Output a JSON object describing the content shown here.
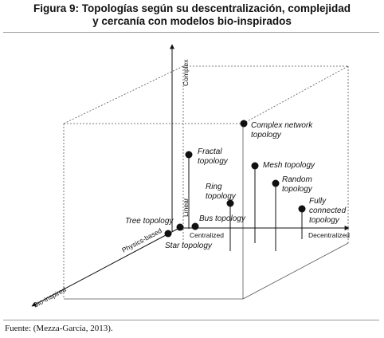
{
  "title": {
    "line1": "Figura 9: Topologías según su descentralización, complejidad",
    "line2": "y cercanía con modelos bio-inspirados"
  },
  "axes": {
    "complex": "Complex",
    "linear": "Linear",
    "centralized": "Centralized",
    "decentralized": "Decentralized",
    "physics_based": "Physics-based",
    "bio_inspired": "Bio-inspired"
  },
  "nodes": {
    "complex_network": {
      "line1": "Complex network",
      "line2": "topology"
    },
    "fractal": {
      "line1": "Fractal",
      "line2": "topology"
    },
    "mesh": {
      "line1": "Mesh topology"
    },
    "random": {
      "line1": "Random",
      "line2": "topology"
    },
    "ring": {
      "line1": "Ring",
      "line2": "topology"
    },
    "fully_connected": {
      "line1": "Fully",
      "line2": "connected",
      "line3": "topology"
    },
    "tree": {
      "line1": "Tree topology"
    },
    "bus": {
      "line1": "Bus topology"
    },
    "star": {
      "line1": "Star topology"
    }
  },
  "source": "Fuente: (Mezza-García, 2013)."
}
